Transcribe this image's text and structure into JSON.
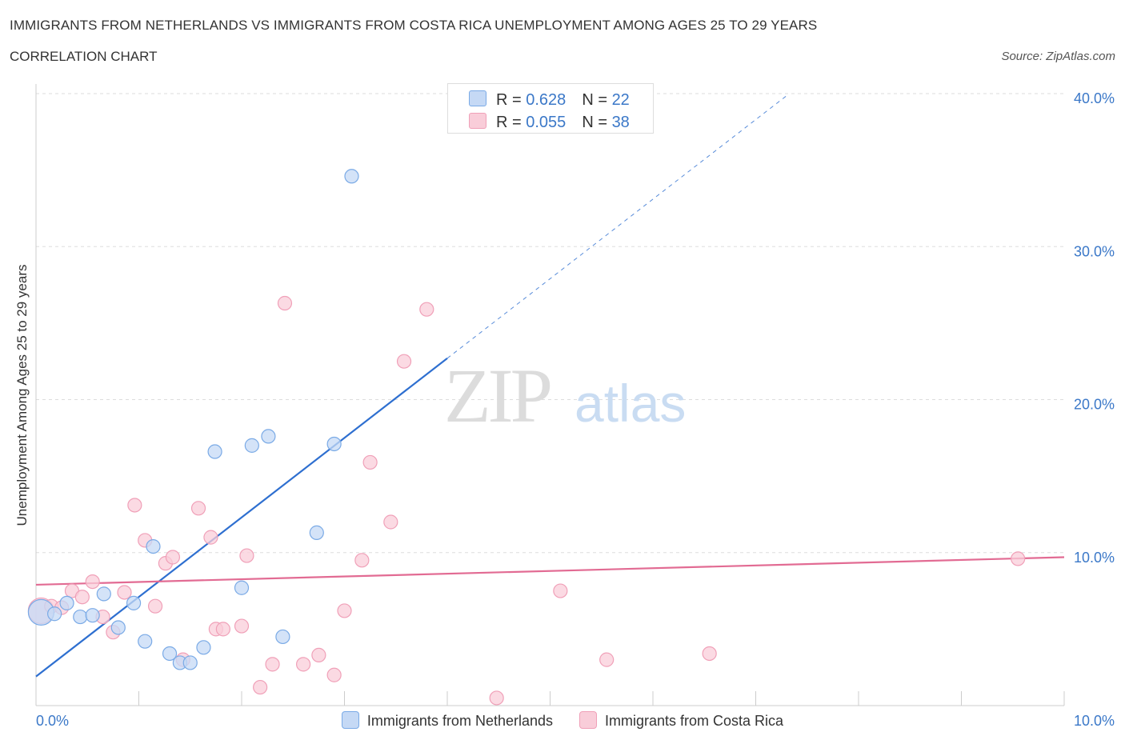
{
  "title": "IMMIGRANTS FROM NETHERLANDS VS IMMIGRANTS FROM COSTA RICA UNEMPLOYMENT AMONG AGES 25 TO 29 YEARS",
  "subtitle": "CORRELATION CHART",
  "source": "Source: ZipAtlas.com",
  "watermark": {
    "zip": "ZIP",
    "atlas": "atlas"
  },
  "legend_top": [
    {
      "r_label": "R = ",
      "r_value": "0.628",
      "n_label": "N = ",
      "n_value": "22"
    },
    {
      "r_label": "R = ",
      "r_value": "0.055",
      "n_label": "N = ",
      "n_value": "38"
    }
  ],
  "chart_data": {
    "type": "scatter",
    "title": "IMMIGRANTS FROM NETHERLANDS VS IMMIGRANTS FROM COSTA RICA UNEMPLOYMENT AMONG AGES 25 TO 29 YEARS",
    "ylabel": "Unemployment Among Ages 25 to 29 years",
    "xlabel": "",
    "xlim": [
      0,
      10
    ],
    "ylim": [
      0,
      40
    ],
    "x_tick_labels": [
      "0.0%",
      "10.0%"
    ],
    "y_tick_values": [
      10,
      20,
      30,
      40
    ],
    "y_tick_labels": [
      "10.0%",
      "20.0%",
      "30.0%",
      "40.0%"
    ],
    "grid": true,
    "series": [
      {
        "name": "Immigrants from Netherlands",
        "color": "#7aaae6",
        "fill": "#c5d9f5",
        "trend_color": "#2e6fd0",
        "trend": {
          "x0": 0.0,
          "y0": 1.9,
          "x1": 4.0,
          "y1": 22.7,
          "dashed_to_x": 7.3
        },
        "points": [
          {
            "x": 0.05,
            "y": 6.1,
            "big": true
          },
          {
            "x": 0.18,
            "y": 6.0
          },
          {
            "x": 0.3,
            "y": 6.7
          },
          {
            "x": 0.43,
            "y": 5.8
          },
          {
            "x": 0.55,
            "y": 5.9
          },
          {
            "x": 0.66,
            "y": 7.3
          },
          {
            "x": 0.8,
            "y": 5.1
          },
          {
            "x": 0.95,
            "y": 6.7
          },
          {
            "x": 1.06,
            "y": 4.2
          },
          {
            "x": 1.14,
            "y": 10.4
          },
          {
            "x": 1.3,
            "y": 3.4
          },
          {
            "x": 1.4,
            "y": 2.8
          },
          {
            "x": 1.5,
            "y": 2.8
          },
          {
            "x": 1.63,
            "y": 3.8
          },
          {
            "x": 1.74,
            "y": 16.6
          },
          {
            "x": 2.0,
            "y": 7.7
          },
          {
            "x": 2.1,
            "y": 17.0
          },
          {
            "x": 2.26,
            "y": 17.6
          },
          {
            "x": 2.4,
            "y": 4.5
          },
          {
            "x": 2.73,
            "y": 11.3
          },
          {
            "x": 2.9,
            "y": 17.1
          },
          {
            "x": 3.07,
            "y": 34.6
          }
        ]
      },
      {
        "name": "Immigrants from Costa Rica",
        "color": "#f0a0b8",
        "fill": "#f9cdd9",
        "trend_color": "#e26b93",
        "trend": {
          "x0": 0.0,
          "y0": 7.9,
          "x1": 10.0,
          "y1": 9.7
        },
        "points": [
          {
            "x": 0.05,
            "y": 6.2,
            "big": true
          },
          {
            "x": 0.15,
            "y": 6.5
          },
          {
            "x": 0.25,
            "y": 6.4
          },
          {
            "x": 0.35,
            "y": 7.5
          },
          {
            "x": 0.45,
            "y": 7.1
          },
          {
            "x": 0.55,
            "y": 8.1
          },
          {
            "x": 0.65,
            "y": 5.8
          },
          {
            "x": 0.75,
            "y": 4.8
          },
          {
            "x": 0.86,
            "y": 7.4
          },
          {
            "x": 0.96,
            "y": 13.1
          },
          {
            "x": 1.06,
            "y": 10.8
          },
          {
            "x": 1.16,
            "y": 6.5
          },
          {
            "x": 1.26,
            "y": 9.3
          },
          {
            "x": 1.33,
            "y": 9.7
          },
          {
            "x": 1.43,
            "y": 3.0
          },
          {
            "x": 1.58,
            "y": 12.9
          },
          {
            "x": 1.7,
            "y": 11.0
          },
          {
            "x": 1.75,
            "y": 5.0
          },
          {
            "x": 1.82,
            "y": 5.0
          },
          {
            "x": 2.0,
            "y": 5.2
          },
          {
            "x": 2.05,
            "y": 9.8
          },
          {
            "x": 2.18,
            "y": 1.2
          },
          {
            "x": 2.3,
            "y": 2.7
          },
          {
            "x": 2.42,
            "y": 26.3
          },
          {
            "x": 2.6,
            "y": 2.7
          },
          {
            "x": 2.75,
            "y": 3.3
          },
          {
            "x": 2.9,
            "y": 2.0
          },
          {
            "x": 3.0,
            "y": 6.2
          },
          {
            "x": 3.17,
            "y": 9.5
          },
          {
            "x": 3.25,
            "y": 15.9
          },
          {
            "x": 3.45,
            "y": 12.0
          },
          {
            "x": 3.58,
            "y": 22.5
          },
          {
            "x": 3.8,
            "y": 25.9
          },
          {
            "x": 4.48,
            "y": 0.5
          },
          {
            "x": 5.1,
            "y": 7.5
          },
          {
            "x": 5.55,
            "y": 3.0
          },
          {
            "x": 6.55,
            "y": 3.4
          },
          {
            "x": 9.55,
            "y": 9.6
          }
        ]
      }
    ]
  }
}
